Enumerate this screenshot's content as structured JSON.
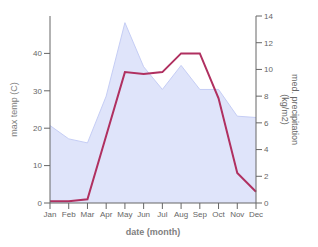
{
  "chart_data": {
    "type": "line",
    "categories": [
      "Jan",
      "Feb",
      "Mar",
      "Apr",
      "May",
      "Jun",
      "Jul",
      "Aug",
      "Sep",
      "Oct",
      "Nov",
      "Dec"
    ],
    "series": [
      {
        "type": "area",
        "color": "#c5cdf5",
        "axis": "y2",
        "values": [
          5.8,
          4.8,
          4.5,
          8.0,
          13.5,
          10.2,
          8.5,
          10.3,
          8.5,
          8.5,
          6.5,
          6.4
        ]
      },
      {
        "type": "line",
        "color": "#b03060",
        "values": [
          0.5,
          0.5,
          1.0,
          18.0,
          35.0,
          34.5,
          35.0,
          40.0,
          40.0,
          28.0,
          8.0,
          3.0
        ]
      }
    ],
    "xlabel": "date (month)",
    "ylabel": "max temp (C)",
    "y2label": "med. precipitation\n(kg/m2)",
    "ylim": [
      0,
      50
    ],
    "yticks": [
      0,
      10,
      20,
      30,
      40
    ],
    "y2lim": [
      0,
      14
    ],
    "y2ticks": [
      0,
      2,
      4,
      6,
      8,
      10,
      12,
      14
    ],
    "grid": false
  }
}
